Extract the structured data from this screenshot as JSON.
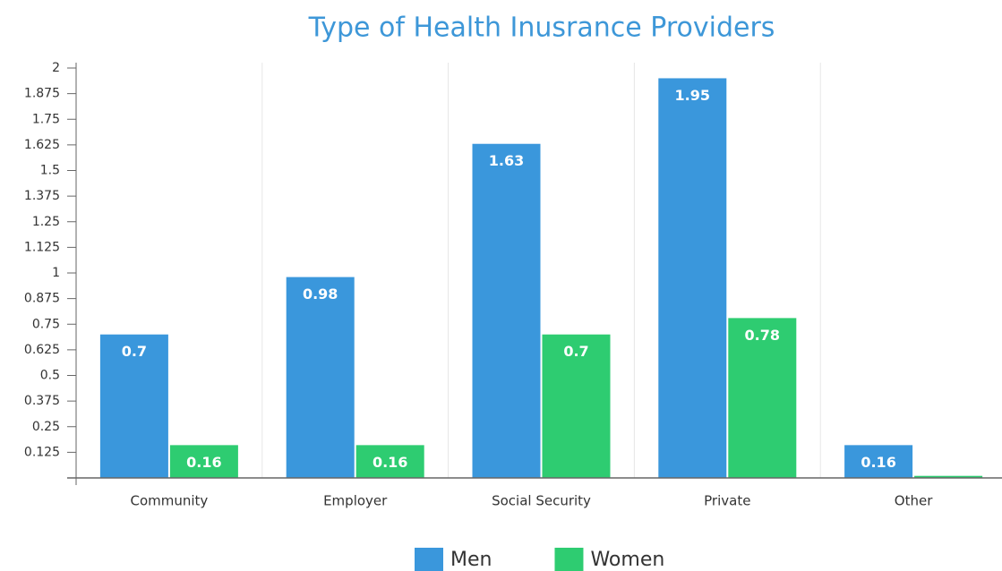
{
  "chart_data": {
    "type": "bar",
    "title": "Type of Health Inusrance Providers",
    "categories": [
      "Community",
      "Employer",
      "Social Security",
      "Private",
      "Other"
    ],
    "series": [
      {
        "name": "Men",
        "color": "#3a97dc",
        "values": [
          0.7,
          0.98,
          1.63,
          1.95,
          0.16
        ]
      },
      {
        "name": "Women",
        "color": "#2ecc71",
        "values": [
          0.16,
          0.16,
          0.7,
          0.78,
          0.01
        ]
      }
    ],
    "ylim": [
      0,
      2
    ],
    "yticks": [
      0.125,
      0.25,
      0.375,
      0.5,
      0.625,
      0.75,
      0.875,
      1,
      1.125,
      1.25,
      1.375,
      1.5,
      1.625,
      1.75,
      1.875,
      2
    ],
    "legend": "bottom"
  }
}
